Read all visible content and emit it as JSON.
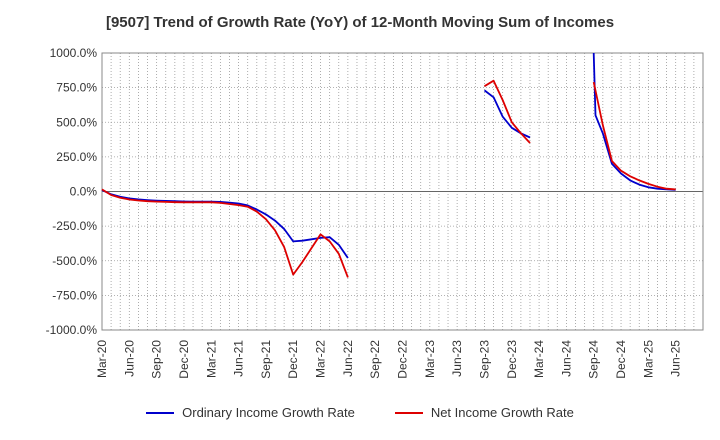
{
  "chart_data": {
    "type": "line",
    "title": "[9507]  Trend of Growth Rate (YoY) of 12-Month Moving Sum of Incomes",
    "xlabel": "",
    "ylabel": "",
    "ylim": [
      -1000,
      1000
    ],
    "yticks": [
      1000,
      750,
      500,
      250,
      0,
      -250,
      -500,
      -750,
      -1000
    ],
    "ytick_labels": [
      "1000.0%",
      "750.0%",
      "500.0%",
      "250.0%",
      "0.0%",
      "-250.0%",
      "-500.0%",
      "-750.0%",
      "-1000.0%"
    ],
    "x_start": "Mar-20",
    "x_months": 63,
    "xtick_labels": [
      "Mar-20",
      "Jun-20",
      "Sep-20",
      "Dec-20",
      "Mar-21",
      "Jun-21",
      "Sep-21",
      "Dec-21",
      "Mar-22",
      "Jun-22",
      "Sep-22",
      "Dec-22",
      "Mar-23",
      "Jun-23",
      "Sep-23",
      "Dec-23",
      "Mar-24",
      "Jun-24",
      "Sep-24",
      "Dec-24",
      "Mar-25",
      "Jun-25"
    ],
    "grid": true,
    "legend_position": "bottom",
    "series": [
      {
        "name": "Ordinary Income Growth Rate",
        "color": "#0000cc",
        "segments": [
          [
            [
              0,
              10
            ],
            [
              1,
              -20
            ],
            [
              2,
              -38
            ],
            [
              3,
              -50
            ],
            [
              4,
              -57
            ],
            [
              5,
              -62
            ],
            [
              6,
              -66
            ],
            [
              7,
              -68
            ],
            [
              8,
              -70
            ],
            [
              9,
              -72
            ],
            [
              10,
              -73
            ],
            [
              11,
              -73
            ],
            [
              12,
              -73
            ],
            [
              13,
              -75
            ],
            [
              14,
              -80
            ],
            [
              15,
              -87
            ],
            [
              16,
              -100
            ],
            [
              17,
              -130
            ],
            [
              18,
              -165
            ],
            [
              19,
              -210
            ],
            [
              20,
              -270
            ],
            [
              21,
              -360
            ],
            [
              22,
              -355
            ],
            [
              23,
              -345
            ],
            [
              24,
              -335
            ],
            [
              25,
              -330
            ],
            [
              26,
              -385
            ],
            [
              27,
              -480
            ]
          ],
          [
            [
              42,
              730
            ],
            [
              43,
              680
            ],
            [
              44,
              540
            ],
            [
              45,
              460
            ],
            [
              46,
              420
            ],
            [
              47,
              390
            ]
          ],
          [
            [
              54,
              1000
            ],
            [
              54.2,
              550
            ],
            [
              55,
              420
            ],
            [
              56,
              200
            ],
            [
              57,
              130
            ],
            [
              58,
              80
            ],
            [
              59,
              50
            ],
            [
              60,
              30
            ],
            [
              61,
              20
            ],
            [
              62,
              15
            ],
            [
              63,
              12
            ]
          ]
        ]
      },
      {
        "name": "Net Income Growth Rate",
        "color": "#dd0000",
        "segments": [
          [
            [
              0,
              15
            ],
            [
              1,
              -25
            ],
            [
              2,
              -45
            ],
            [
              3,
              -58
            ],
            [
              4,
              -65
            ],
            [
              5,
              -70
            ],
            [
              6,
              -73
            ],
            [
              7,
              -75
            ],
            [
              8,
              -77
            ],
            [
              9,
              -78
            ],
            [
              10,
              -78
            ],
            [
              11,
              -78
            ],
            [
              12,
              -78
            ],
            [
              13,
              -82
            ],
            [
              14,
              -90
            ],
            [
              15,
              -98
            ],
            [
              16,
              -110
            ],
            [
              17,
              -145
            ],
            [
              18,
              -200
            ],
            [
              19,
              -280
            ],
            [
              20,
              -400
            ],
            [
              21,
              -600
            ],
            [
              22,
              -510
            ],
            [
              23,
              -410
            ],
            [
              24,
              -310
            ],
            [
              25,
              -360
            ],
            [
              26,
              -450
            ],
            [
              27,
              -620
            ]
          ],
          [
            [
              42,
              760
            ],
            [
              43,
              800
            ],
            [
              44,
              660
            ],
            [
              45,
              500
            ],
            [
              46,
              420
            ],
            [
              47,
              350
            ]
          ],
          [
            [
              54,
              790
            ],
            [
              55,
              480
            ],
            [
              56,
              220
            ],
            [
              57,
              150
            ],
            [
              58,
              110
            ],
            [
              59,
              80
            ],
            [
              60,
              55
            ],
            [
              61,
              35
            ],
            [
              62,
              20
            ],
            [
              63,
              15
            ]
          ]
        ]
      }
    ]
  }
}
